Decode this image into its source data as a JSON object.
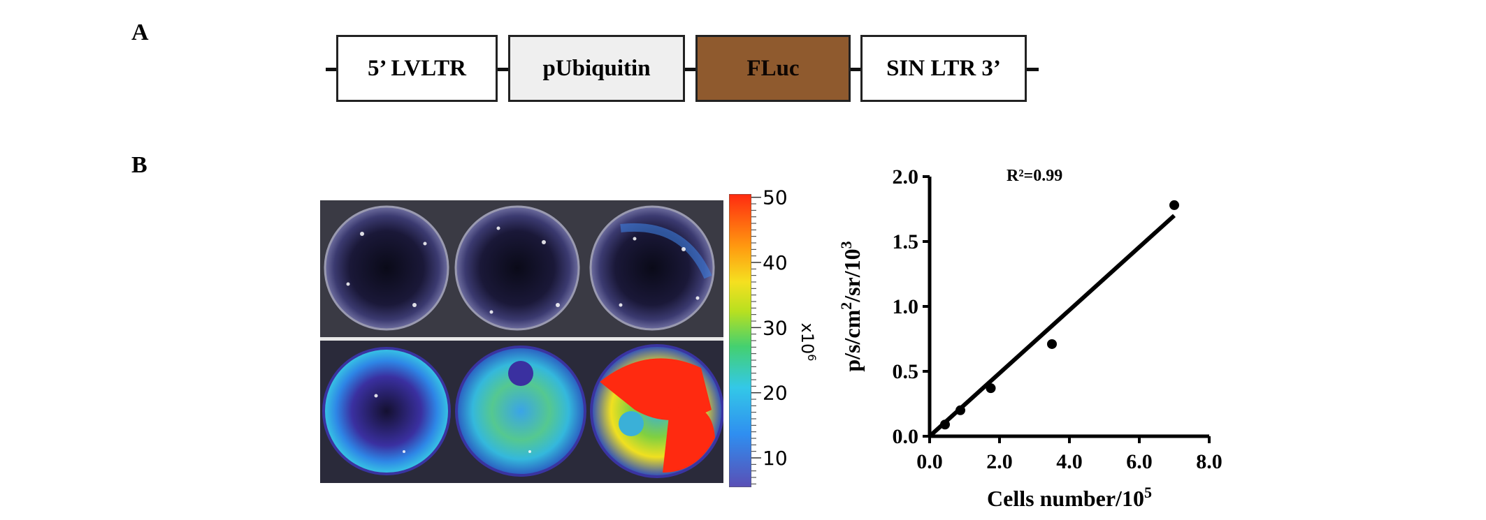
{
  "panels": {
    "a_label": "A",
    "b_label": "B"
  },
  "construct": {
    "blocks": [
      {
        "label": "5’ LVLTR",
        "fill": "#ffffff"
      },
      {
        "label": "pUbiquitin",
        "fill": "#efefef"
      },
      {
        "label": "FLuc",
        "fill": "#8f5a2e"
      },
      {
        "label": "SIN LTR 3’",
        "fill": "#ffffff"
      }
    ]
  },
  "colorbar": {
    "ticks": [
      "10",
      "20",
      "30",
      "40",
      "50"
    ],
    "scale_label": "x10",
    "scale_exp": "6",
    "colors": [
      "#5a4fb5",
      "#2f8ef0",
      "#33c8e8",
      "#44d070",
      "#b8e020",
      "#f5e020",
      "#ff9a10",
      "#ff2a10"
    ]
  },
  "chart_data": {
    "type": "scatter",
    "title": "",
    "annotation": "R²=0.99",
    "xlabel": "Cells number/10",
    "xlabel_exp": "5",
    "ylabel": "p/s/cm",
    "ylabel_parts": {
      "sq": "2",
      "mid": "/sr/10",
      "exp": "3"
    },
    "xlim": [
      0.0,
      8.0
    ],
    "ylim": [
      0.0,
      2.0
    ],
    "xticks": [
      "0.0",
      "2.0",
      "4.0",
      "6.0",
      "8.0"
    ],
    "yticks": [
      "0.0",
      "0.5",
      "1.0",
      "1.5",
      "2.0"
    ],
    "grid": false,
    "points": [
      {
        "x": 0.44,
        "y": 0.09
      },
      {
        "x": 0.88,
        "y": 0.2
      },
      {
        "x": 1.75,
        "y": 0.37
      },
      {
        "x": 3.5,
        "y": 0.71
      },
      {
        "x": 7.0,
        "y": 1.78
      }
    ],
    "fit_line": {
      "x": [
        0.0,
        7.0
      ],
      "y": [
        0.0,
        1.7
      ]
    }
  }
}
